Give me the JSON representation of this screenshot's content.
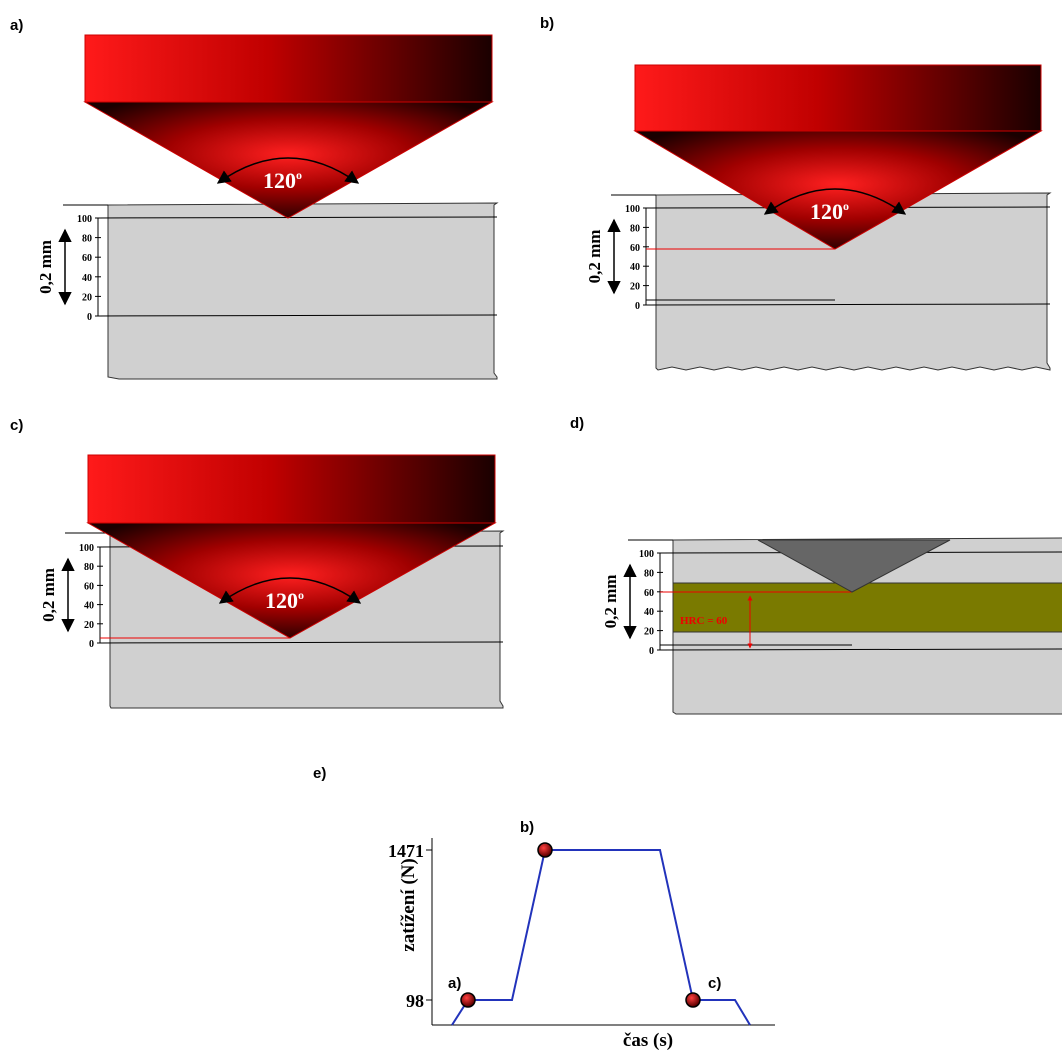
{
  "panels": [
    {
      "label": "a)",
      "angle": "120",
      "angle_unit": "o",
      "depth": "0,2 mm",
      "scale": [
        "100",
        "80",
        "60",
        "40",
        "20",
        "0"
      ]
    },
    {
      "label": "b)",
      "angle": "120",
      "angle_unit": "o",
      "depth": "0,2 mm",
      "scale": [
        "100",
        "80",
        "60",
        "40",
        "20",
        "0"
      ]
    },
    {
      "label": "c)",
      "angle": "120",
      "angle_unit": "o",
      "depth": "0,2 mm",
      "scale": [
        "100",
        "80",
        "60",
        "40",
        "20",
        "0"
      ]
    },
    {
      "label": "d)",
      "depth": "0,2 mm",
      "scale": [
        "100",
        "80",
        "60",
        "40",
        "20",
        "0"
      ],
      "hardness": "HRC = 60"
    }
  ],
  "graph": {
    "label": "e)",
    "y_labels": [
      "1471",
      "98"
    ],
    "y_axis": "zatížení (N)",
    "x_axis": "čas (s)",
    "points": [
      "a)",
      "b)",
      "c)"
    ]
  }
}
